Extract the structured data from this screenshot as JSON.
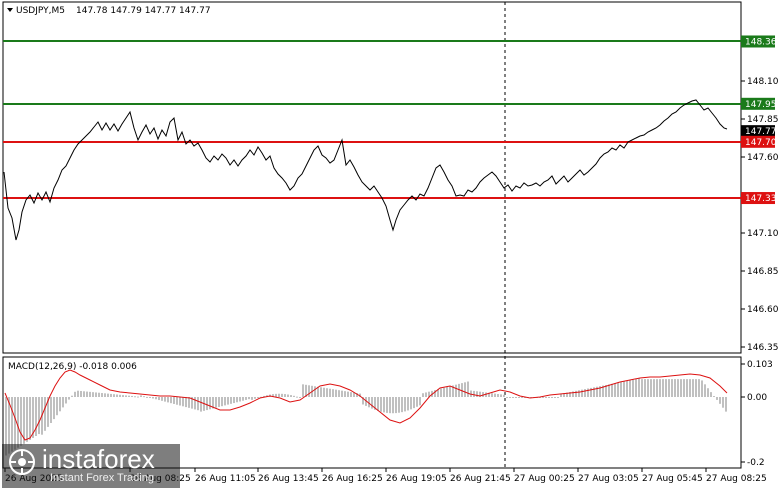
{
  "header": {
    "symbol": "USDJPY,M5",
    "ohlc": "147.78 147.79 147.77 147.77",
    "macd_label": "MACD(12,26,9) -0.018 0.006"
  },
  "price_axis": {
    "ticks": [
      {
        "label": "148.10",
        "value": 148.1
      },
      {
        "label": "147.85",
        "value": 147.85
      },
      {
        "label": "147.60",
        "value": 147.6
      },
      {
        "label": "147.10",
        "value": 147.1
      },
      {
        "label": "146.85",
        "value": 146.85
      },
      {
        "label": "146.60",
        "value": 146.6
      },
      {
        "label": "146.35",
        "value": 146.35
      }
    ]
  },
  "level_tags": [
    {
      "label": "148.36",
      "value": 148.36,
      "color": "#1a7a1a"
    },
    {
      "label": "147.95",
      "value": 147.95,
      "color": "#1a7a1a"
    },
    {
      "label": "147.77",
      "value": 147.77,
      "color": "#000000"
    },
    {
      "label": "147.70",
      "value": 147.7,
      "color": "#dd1111"
    },
    {
      "label": "147.33",
      "value": 147.33,
      "color": "#dd1111"
    }
  ],
  "macd_axis": {
    "ticks": [
      {
        "label": "0.103",
        "value": 0.103
      },
      {
        "label": "0.00",
        "value": 0.0
      },
      {
        "label": "-0.2",
        "value": -0.2
      }
    ]
  },
  "time_axis": {
    "labels": [
      "26 Aug 2025",
      "26 Aug 08:25",
      "26 Aug 11:05",
      "26 Aug 13:45",
      "26 Aug 16:25",
      "26 Aug 19:05",
      "26 Aug 21:45",
      "27 Aug 00:25",
      "27 Aug 03:05",
      "27 Aug 05:45",
      "27 Aug 08:25"
    ]
  },
  "watermark": {
    "name": "instaforex",
    "tagline": "Instant Forex Trading"
  },
  "colors": {
    "support_resistance_green": "#1a7a1a",
    "entry_red": "#dd1111",
    "price_line": "#000000",
    "macd_histogram": "#c0c0c0",
    "macd_signal": "#dd1111"
  }
}
